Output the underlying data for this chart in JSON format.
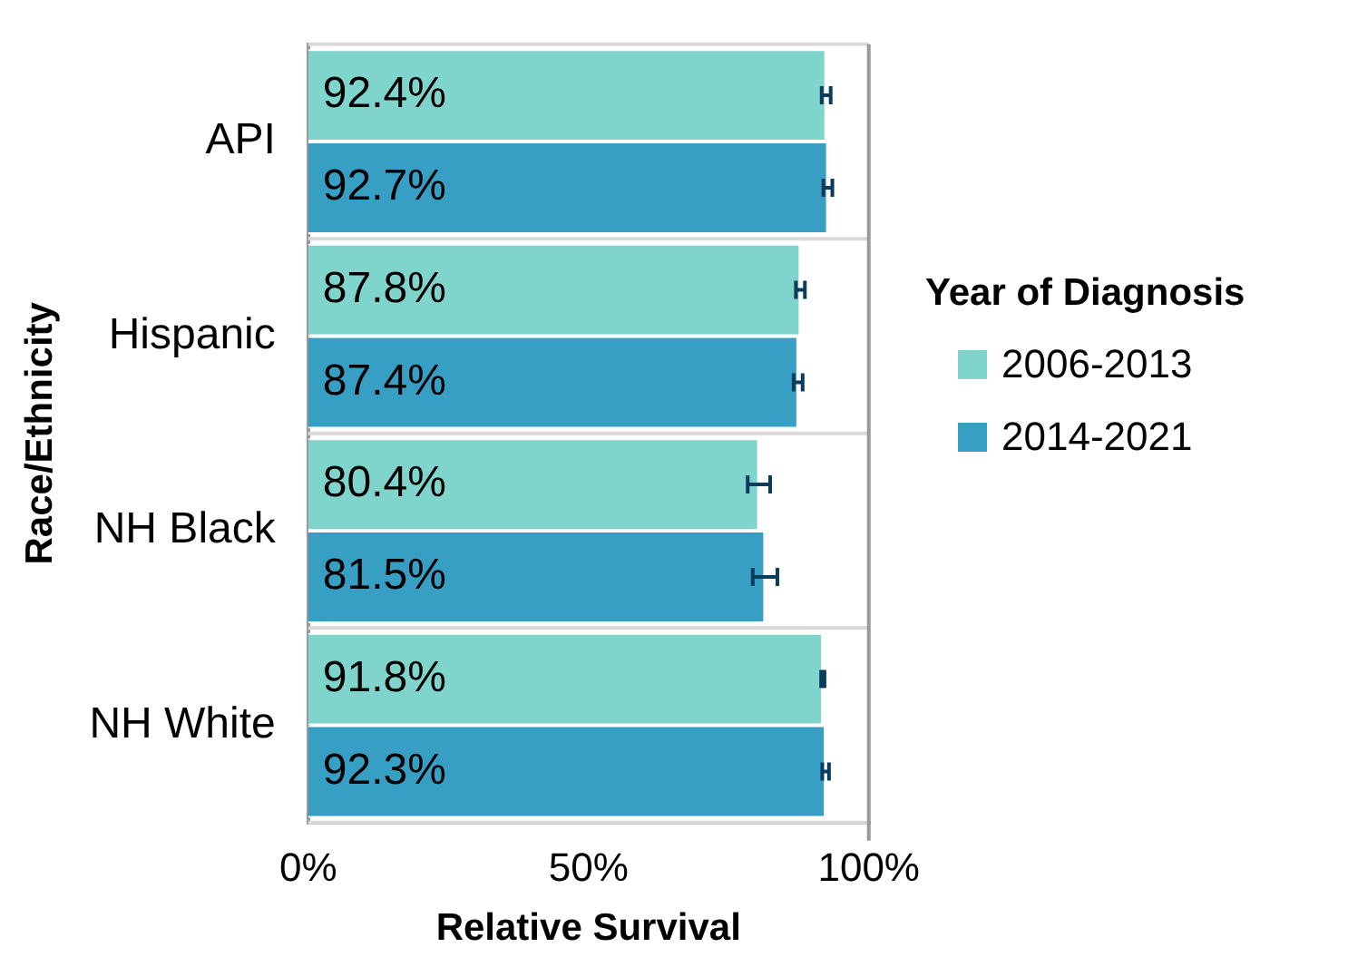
{
  "chart_data": {
    "type": "bar",
    "orientation": "horizontal",
    "xlabel": "Relative Survival",
    "ylabel": "Race/Ethnicity",
    "legend_title": "Year of Diagnosis",
    "categories": [
      "API",
      "Hispanic",
      "NH Black",
      "NH White"
    ],
    "series": [
      {
        "name": "2006-2013",
        "color": "#7fd4cb",
        "values": [
          92.4,
          87.8,
          80.4,
          91.8
        ],
        "errors": [
          0.8,
          0.8,
          2.0,
          0.3
        ],
        "value_labels": [
          "92.4%",
          "87.8%",
          "80.4%",
          "91.8%"
        ]
      },
      {
        "name": "2014-2021",
        "color": "#379fc3",
        "values": [
          92.7,
          87.4,
          81.5,
          92.3
        ],
        "errors": [
          0.8,
          0.8,
          2.2,
          0.6
        ],
        "value_labels": [
          "92.7%",
          "87.4%",
          "81.5%",
          "92.3%"
        ]
      }
    ],
    "xlim": [
      0,
      100
    ],
    "xticks": [
      {
        "value": 0,
        "label": "0%"
      },
      {
        "value": 50,
        "label": "50%"
      },
      {
        "value": 100,
        "label": "100%"
      }
    ],
    "grid": "y",
    "legend": "right"
  }
}
